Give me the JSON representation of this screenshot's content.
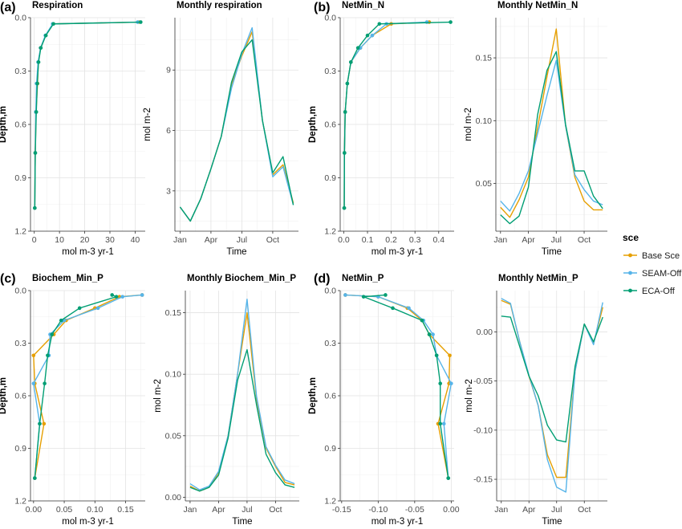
{
  "figure": {
    "panel_letters": [
      "(a)",
      "(b)",
      "(c)",
      "(d)"
    ],
    "legend": {
      "title": "sce",
      "items": [
        {
          "name": "Base Sce",
          "color": "#E69F00"
        },
        {
          "name": "SEAM-Off",
          "color": "#56B4E9"
        },
        {
          "name": "ECA-Off",
          "color": "#009E73"
        }
      ]
    }
  },
  "chart_data": [
    {
      "id": "respiration",
      "type": "line",
      "title": "Respiration",
      "xlabel": "mol m-3 yr-1",
      "ylabel": "Depth,m",
      "xlim": [
        -1.5,
        44
      ],
      "ylim": [
        0,
        1.2
      ],
      "y_reversed": true,
      "grid": true,
      "xticks": [
        0,
        10,
        20,
        30,
        40
      ],
      "xticklabels": [
        "0",
        "10",
        "20",
        "30",
        "40"
      ],
      "yticks": [
        0,
        0.3,
        0.6,
        0.9,
        1.2
      ],
      "yticklabels": [
        "0.0",
        "0.3",
        "0.6",
        "0.9",
        "1.2"
      ],
      "markers": true,
      "series": [
        {
          "name": "Base Sce",
          "x": [
            41.5,
            7.5,
            4.5,
            2.5,
            1.6,
            1.3,
            0.7,
            0.4,
            0.2
          ],
          "y": [
            0.025,
            0.035,
            0.1,
            0.17,
            0.25,
            0.37,
            0.53,
            0.76,
            1.07
          ]
        },
        {
          "name": "SEAM-Off",
          "x": [
            41.0,
            7.3,
            4.4,
            2.5,
            1.5,
            0.9,
            0.6,
            0.4,
            0.2
          ],
          "y": [
            0.025,
            0.035,
            0.1,
            0.17,
            0.25,
            0.37,
            0.53,
            0.76,
            1.07
          ]
        },
        {
          "name": "ECA-Off",
          "x": [
            42.2,
            7.6,
            4.6,
            2.6,
            1.7,
            1.2,
            0.8,
            0.4,
            0.2
          ],
          "y": [
            0.025,
            0.035,
            0.1,
            0.17,
            0.25,
            0.37,
            0.53,
            0.76,
            1.07
          ]
        }
      ]
    },
    {
      "id": "monthly_respiration",
      "type": "line",
      "title": "Monthly respiration",
      "xlabel": "Time",
      "ylabel": "mol m-2",
      "xlim": [
        0.5,
        12.5
      ],
      "ylim": [
        1.0,
        11.6
      ],
      "grid": true,
      "xticks": [
        1,
        4,
        7,
        10
      ],
      "xticklabels": [
        "Jan",
        "Apr",
        "Jul",
        "Oct"
      ],
      "yticks": [
        3,
        6,
        9
      ],
      "yticklabels": [
        "3",
        "6",
        "9"
      ],
      "markers": false,
      "series": [
        {
          "name": "Base Sce",
          "x": [
            1,
            2,
            3,
            4,
            5,
            6,
            7,
            8,
            9,
            10,
            11,
            12
          ],
          "y": [
            2.2,
            1.5,
            2.6,
            4.1,
            5.7,
            8.3,
            9.7,
            10.9,
            6.5,
            3.8,
            4.3,
            2.4
          ]
        },
        {
          "name": "SEAM-Off",
          "x": [
            1,
            2,
            3,
            4,
            5,
            6,
            7,
            8,
            9,
            10,
            11,
            12
          ],
          "y": [
            2.2,
            1.5,
            2.6,
            4.1,
            5.7,
            8.1,
            9.8,
            11.1,
            6.5,
            3.7,
            4.2,
            2.3
          ]
        },
        {
          "name": "ECA-Off",
          "x": [
            1,
            2,
            3,
            4,
            5,
            6,
            7,
            8,
            9,
            10,
            11,
            12
          ],
          "y": [
            2.2,
            1.5,
            2.6,
            4.1,
            5.7,
            8.4,
            9.9,
            10.5,
            6.5,
            3.9,
            4.7,
            2.3
          ]
        }
      ]
    },
    {
      "id": "netmin_n",
      "type": "line",
      "title": "NetMin_N",
      "xlabel": "mol m-3 yr-1",
      "ylabel": "Depth,m",
      "xlim": [
        -0.015,
        0.465
      ],
      "ylim": [
        0,
        1.2
      ],
      "y_reversed": true,
      "grid": true,
      "xticks": [
        0.0,
        0.1,
        0.2,
        0.3,
        0.4
      ],
      "xticklabels": [
        "0.0",
        "0.1",
        "0.2",
        "0.3",
        "0.4"
      ],
      "yticks": [
        0,
        0.3,
        0.6,
        0.9,
        1.2
      ],
      "yticklabels": [
        "0.0",
        "0.3",
        "0.6",
        "0.9",
        "1.2"
      ],
      "markers": true,
      "series": [
        {
          "name": "Base Sce",
          "x": [
            0.36,
            0.2,
            0.12,
            0.07,
            0.03,
            0.015,
            0.006,
            0.003,
            0.002
          ],
          "y": [
            0.025,
            0.035,
            0.1,
            0.17,
            0.25,
            0.37,
            0.53,
            0.76,
            1.07
          ]
        },
        {
          "name": "SEAM-Off",
          "x": [
            0.35,
            0.18,
            0.12,
            0.07,
            0.03,
            0.015,
            0.006,
            0.003,
            0.002
          ],
          "y": [
            0.025,
            0.035,
            0.1,
            0.17,
            0.25,
            0.37,
            0.53,
            0.76,
            1.07
          ]
        },
        {
          "name": "ECA-Off",
          "x": [
            0.45,
            0.15,
            0.1,
            0.06,
            0.03,
            0.015,
            0.006,
            0.003,
            0.002
          ],
          "y": [
            0.025,
            0.035,
            0.1,
            0.17,
            0.25,
            0.37,
            0.53,
            0.76,
            1.07
          ]
        }
      ]
    },
    {
      "id": "monthly_netmin_n",
      "type": "line",
      "title": "Monthly NetMin_N",
      "xlabel": "Time",
      "ylabel": "mol m-2",
      "xlim": [
        0.5,
        12.5
      ],
      "ylim": [
        0.012,
        0.182
      ],
      "grid": true,
      "xticks": [
        1,
        4,
        7,
        10
      ],
      "xticklabels": [
        "Jan",
        "Apr",
        "Jul",
        "Oct"
      ],
      "yticks": [
        0.05,
        0.1,
        0.15
      ],
      "yticklabels": [
        "0.05",
        "0.10",
        "0.15"
      ],
      "markers": false,
      "series": [
        {
          "name": "Base Sce",
          "x": [
            1,
            2,
            3,
            4,
            5,
            6,
            7,
            8,
            9,
            10,
            11,
            12
          ],
          "y": [
            0.031,
            0.023,
            0.037,
            0.055,
            0.095,
            0.135,
            0.173,
            0.096,
            0.055,
            0.036,
            0.029,
            0.029
          ]
        },
        {
          "name": "SEAM-Off",
          "x": [
            1,
            2,
            3,
            4,
            5,
            6,
            7,
            8,
            9,
            10,
            11,
            12
          ],
          "y": [
            0.036,
            0.028,
            0.042,
            0.06,
            0.09,
            0.12,
            0.148,
            0.096,
            0.057,
            0.045,
            0.036,
            0.033
          ]
        },
        {
          "name": "ECA-Off",
          "x": [
            1,
            2,
            3,
            4,
            5,
            6,
            7,
            8,
            9,
            10,
            11,
            12
          ],
          "y": [
            0.025,
            0.018,
            0.024,
            0.047,
            0.105,
            0.14,
            0.155,
            0.097,
            0.06,
            0.06,
            0.04,
            0.03
          ]
        }
      ]
    },
    {
      "id": "biochem_min_p",
      "type": "line",
      "title": "Biochem_Min_P",
      "xlabel": "mol m-3 yr-1",
      "ylabel": "Depth,m",
      "xlim": [
        -0.005,
        0.182
      ],
      "ylim": [
        0,
        1.2
      ],
      "y_reversed": true,
      "grid": true,
      "xticks": [
        0.0,
        0.05,
        0.1,
        0.15
      ],
      "xticklabels": [
        "0.00",
        "0.05",
        "0.10",
        "0.15"
      ],
      "yticks": [
        0,
        0.3,
        0.6,
        0.9,
        1.2
      ],
      "yticklabels": [
        "0.0",
        "0.3",
        "0.6",
        "0.9",
        "1.2"
      ],
      "markers": true,
      "series": [
        {
          "name": "Base Sce",
          "x": [
            0.177,
            0.14,
            0.1,
            0.053,
            0.033,
            0.0,
            0.002,
            0.017,
            0.002
          ],
          "y": [
            0.025,
            0.035,
            0.1,
            0.17,
            0.25,
            0.37,
            0.53,
            0.76,
            1.07
          ]
        },
        {
          "name": "SEAM-Off",
          "x": [
            0.177,
            0.145,
            0.105,
            0.05,
            0.027,
            0.025,
            0.0,
            0.01,
            0.002
          ],
          "y": [
            0.025,
            0.035,
            0.1,
            0.17,
            0.25,
            0.37,
            0.53,
            0.76,
            1.07
          ]
        },
        {
          "name": "ECA-Off",
          "x": [
            0.128,
            0.135,
            0.075,
            0.045,
            0.03,
            0.023,
            0.018,
            0.01,
            0.002
          ],
          "y": [
            0.025,
            0.035,
            0.1,
            0.17,
            0.25,
            0.37,
            0.53,
            0.76,
            1.07
          ]
        }
      ]
    },
    {
      "id": "monthly_biochem_min_p",
      "type": "line",
      "title": "Monthly Biochem_Min_P",
      "xlabel": "Time",
      "ylabel": "mol m-2",
      "xlim": [
        0.5,
        12.5
      ],
      "ylim": [
        -0.003,
        0.168
      ],
      "grid": true,
      "xticks": [
        1,
        4,
        7,
        10
      ],
      "xticklabels": [
        "Jan",
        "Apr",
        "Jul",
        "Oct"
      ],
      "yticks": [
        0.0,
        0.05,
        0.1,
        0.15
      ],
      "yticklabels": [
        "0.00",
        "0.05",
        "0.10",
        "0.15"
      ],
      "markers": false,
      "series": [
        {
          "name": "Base Sce",
          "x": [
            1,
            2,
            3,
            4,
            5,
            6,
            7,
            8,
            9,
            10,
            11,
            12
          ],
          "y": [
            0.009,
            0.005,
            0.008,
            0.02,
            0.05,
            0.1,
            0.15,
            0.08,
            0.04,
            0.025,
            0.012,
            0.01
          ]
        },
        {
          "name": "SEAM-Off",
          "x": [
            1,
            2,
            3,
            4,
            5,
            6,
            7,
            8,
            9,
            10,
            11,
            12
          ],
          "y": [
            0.011,
            0.006,
            0.009,
            0.021,
            0.05,
            0.1,
            0.161,
            0.082,
            0.041,
            0.026,
            0.014,
            0.011
          ]
        },
        {
          "name": "ECA-Off",
          "x": [
            1,
            2,
            3,
            4,
            5,
            6,
            7,
            8,
            9,
            10,
            11,
            12
          ],
          "y": [
            0.008,
            0.005,
            0.008,
            0.018,
            0.048,
            0.095,
            0.12,
            0.075,
            0.035,
            0.02,
            0.01,
            0.008
          ]
        }
      ]
    },
    {
      "id": "netmin_p",
      "type": "line",
      "title": "NetMin_P",
      "xlabel": "mol m-3 yr-1",
      "ylabel": "Depth,m",
      "xlim": [
        -0.152,
        0.004
      ],
      "ylim": [
        0,
        1.2
      ],
      "y_reversed": true,
      "grid": true,
      "xticks": [
        -0.15,
        -0.1,
        -0.05,
        0.0
      ],
      "xticklabels": [
        "-0.15",
        "-0.10",
        "-0.05",
        "0.00"
      ],
      "yticks": [
        0,
        0.3,
        0.6,
        0.9,
        1.2
      ],
      "yticklabels": [
        "0.0",
        "0.3",
        "0.6",
        "0.9",
        "1.2"
      ],
      "markers": true,
      "series": [
        {
          "name": "Base Sce",
          "x": [
            -0.145,
            -0.1,
            -0.06,
            -0.04,
            -0.03,
            -0.002,
            -0.003,
            -0.018,
            -0.004
          ],
          "y": [
            0.025,
            0.035,
            0.1,
            0.17,
            0.25,
            0.37,
            0.53,
            0.76,
            1.07
          ]
        },
        {
          "name": "SEAM-Off",
          "x": [
            -0.145,
            -0.1,
            -0.058,
            -0.038,
            -0.025,
            -0.02,
            0.0,
            -0.01,
            -0.004
          ],
          "y": [
            0.025,
            0.035,
            0.1,
            0.17,
            0.25,
            0.37,
            0.53,
            0.76,
            1.07
          ]
        },
        {
          "name": "ECA-Off",
          "x": [
            -0.09,
            -0.12,
            -0.08,
            -0.04,
            -0.03,
            -0.02,
            -0.015,
            -0.015,
            -0.004
          ],
          "y": [
            0.025,
            0.035,
            0.1,
            0.17,
            0.25,
            0.37,
            0.53,
            0.76,
            1.07
          ]
        }
      ]
    },
    {
      "id": "monthly_netmin_p",
      "type": "line",
      "title": "Monthly NetMin_P",
      "xlabel": "Time",
      "ylabel": "mol m-2",
      "xlim": [
        0.5,
        12.5
      ],
      "ylim": [
        -0.172,
        0.042
      ],
      "grid": true,
      "xticks": [
        1,
        4,
        7,
        10
      ],
      "xticklabels": [
        "Jan",
        "Apr",
        "Jul",
        "Oct"
      ],
      "yticks": [
        -0.15,
        -0.1,
        -0.05,
        0.0
      ],
      "yticklabels": [
        "-0.15",
        "-0.10",
        "-0.05",
        "0.00"
      ],
      "markers": false,
      "series": [
        {
          "name": "Base Sce",
          "x": [
            1,
            2,
            3,
            4,
            5,
            6,
            7,
            8,
            9,
            10,
            11,
            12
          ],
          "y": [
            0.032,
            0.028,
            -0.01,
            -0.045,
            -0.075,
            -0.125,
            -0.148,
            -0.148,
            -0.04,
            0.008,
            -0.012,
            0.025
          ]
        },
        {
          "name": "SEAM-Off",
          "x": [
            1,
            2,
            3,
            4,
            5,
            6,
            7,
            8,
            9,
            10,
            11,
            12
          ],
          "y": [
            0.034,
            0.029,
            -0.01,
            -0.044,
            -0.075,
            -0.13,
            -0.158,
            -0.163,
            -0.04,
            0.008,
            -0.013,
            0.03
          ]
        },
        {
          "name": "ECA-Off",
          "x": [
            1,
            2,
            3,
            4,
            5,
            6,
            7,
            8,
            9,
            10,
            11,
            12
          ],
          "y": [
            0.016,
            0.015,
            -0.015,
            -0.045,
            -0.065,
            -0.095,
            -0.11,
            -0.112,
            -0.035,
            0.008,
            -0.01,
            0.015
          ]
        }
      ]
    }
  ]
}
